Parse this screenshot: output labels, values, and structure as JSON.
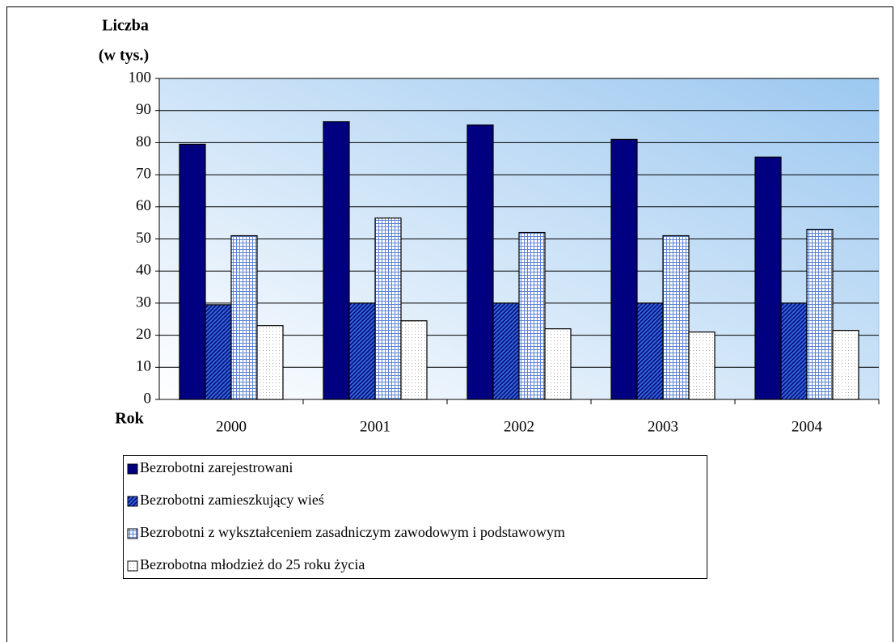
{
  "chart_data": {
    "type": "bar",
    "ylabel": [
      "Liczba",
      "(w tys.)"
    ],
    "xlabel": "Rok",
    "categories": [
      "2000",
      "2001",
      "2002",
      "2003",
      "2004"
    ],
    "series": [
      {
        "name": "Bezrobotni zarejestrowani",
        "color": "#000080",
        "pattern": "solid",
        "values": [
          79.5,
          86.5,
          85.5,
          81,
          75.5
        ]
      },
      {
        "name": "Bezrobotni zamieszkujący wieś",
        "color": "#3366cc",
        "pattern": "diagonal",
        "values": [
          29.5,
          30,
          30,
          30,
          30
        ]
      },
      {
        "name": "Bezrobotni z wykształceniem zasadniczym zawodowym i podstawowym",
        "color": "#5b84d6",
        "pattern": "grid",
        "values": [
          51,
          56.5,
          52,
          51,
          53
        ]
      },
      {
        "name": "Bezrobotna młodzież do 25 roku życia",
        "color": "#ffffff",
        "pattern": "dots",
        "values": [
          23,
          24.5,
          22,
          21,
          21.5
        ]
      }
    ],
    "ylim": [
      0,
      100
    ],
    "yticks": [
      0,
      10,
      20,
      30,
      40,
      50,
      60,
      70,
      80,
      90,
      100
    ],
    "grid": true
  }
}
